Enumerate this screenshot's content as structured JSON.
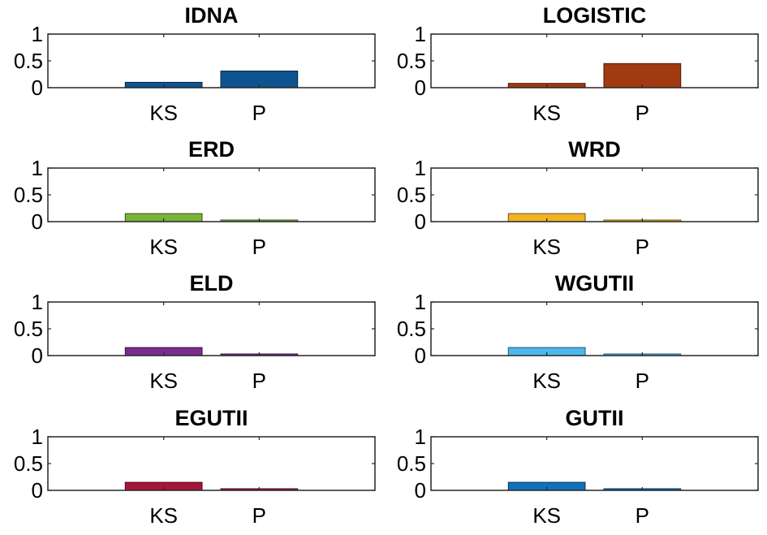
{
  "chart_data": [
    {
      "type": "bar",
      "title": "IDNA",
      "categories": [
        "KS",
        "P"
      ],
      "values": [
        0.1,
        0.31
      ],
      "ylim": [
        0,
        1
      ],
      "yticks": [
        "1",
        "0.5",
        "0"
      ],
      "color": "#0E5491"
    },
    {
      "type": "bar",
      "title": "LOGISTIC",
      "categories": [
        "KS",
        "P"
      ],
      "values": [
        0.08,
        0.45
      ],
      "ylim": [
        0,
        1
      ],
      "yticks": [
        "1",
        "0.5",
        "0"
      ],
      "color": "#A13A10"
    },
    {
      "type": "bar",
      "title": "ERD",
      "categories": [
        "KS",
        "P"
      ],
      "values": [
        0.15,
        0.03
      ],
      "ylim": [
        0,
        1
      ],
      "yticks": [
        "1",
        "0.5",
        "0"
      ],
      "color": "#7AB43A"
    },
    {
      "type": "bar",
      "title": "WRD",
      "categories": [
        "KS",
        "P"
      ],
      "values": [
        0.15,
        0.03
      ],
      "ylim": [
        0,
        1
      ],
      "yticks": [
        "1",
        "0.5",
        "0"
      ],
      "color": "#F0B323"
    },
    {
      "type": "bar",
      "title": "ELD",
      "categories": [
        "KS",
        "P"
      ],
      "values": [
        0.15,
        0.03
      ],
      "ylim": [
        0,
        1
      ],
      "yticks": [
        "1",
        "0.5",
        "0"
      ],
      "color": "#7B2C8E"
    },
    {
      "type": "bar",
      "title": "WGUTII",
      "categories": [
        "KS",
        "P"
      ],
      "values": [
        0.15,
        0.03
      ],
      "ylim": [
        0,
        1
      ],
      "yticks": [
        "1",
        "0.5",
        "0"
      ],
      "color": "#4DB8EB"
    },
    {
      "type": "bar",
      "title": "EGUTII",
      "categories": [
        "KS",
        "P"
      ],
      "values": [
        0.15,
        0.03
      ],
      "ylim": [
        0,
        1
      ],
      "yticks": [
        "1",
        "0.5",
        "0"
      ],
      "color": "#A5173A"
    },
    {
      "type": "bar",
      "title": "GUTII",
      "categories": [
        "KS",
        "P"
      ],
      "values": [
        0.15,
        0.03
      ],
      "ylim": [
        0,
        1
      ],
      "yticks": [
        "1",
        "0.5",
        "0"
      ],
      "color": "#0F72BD"
    }
  ]
}
